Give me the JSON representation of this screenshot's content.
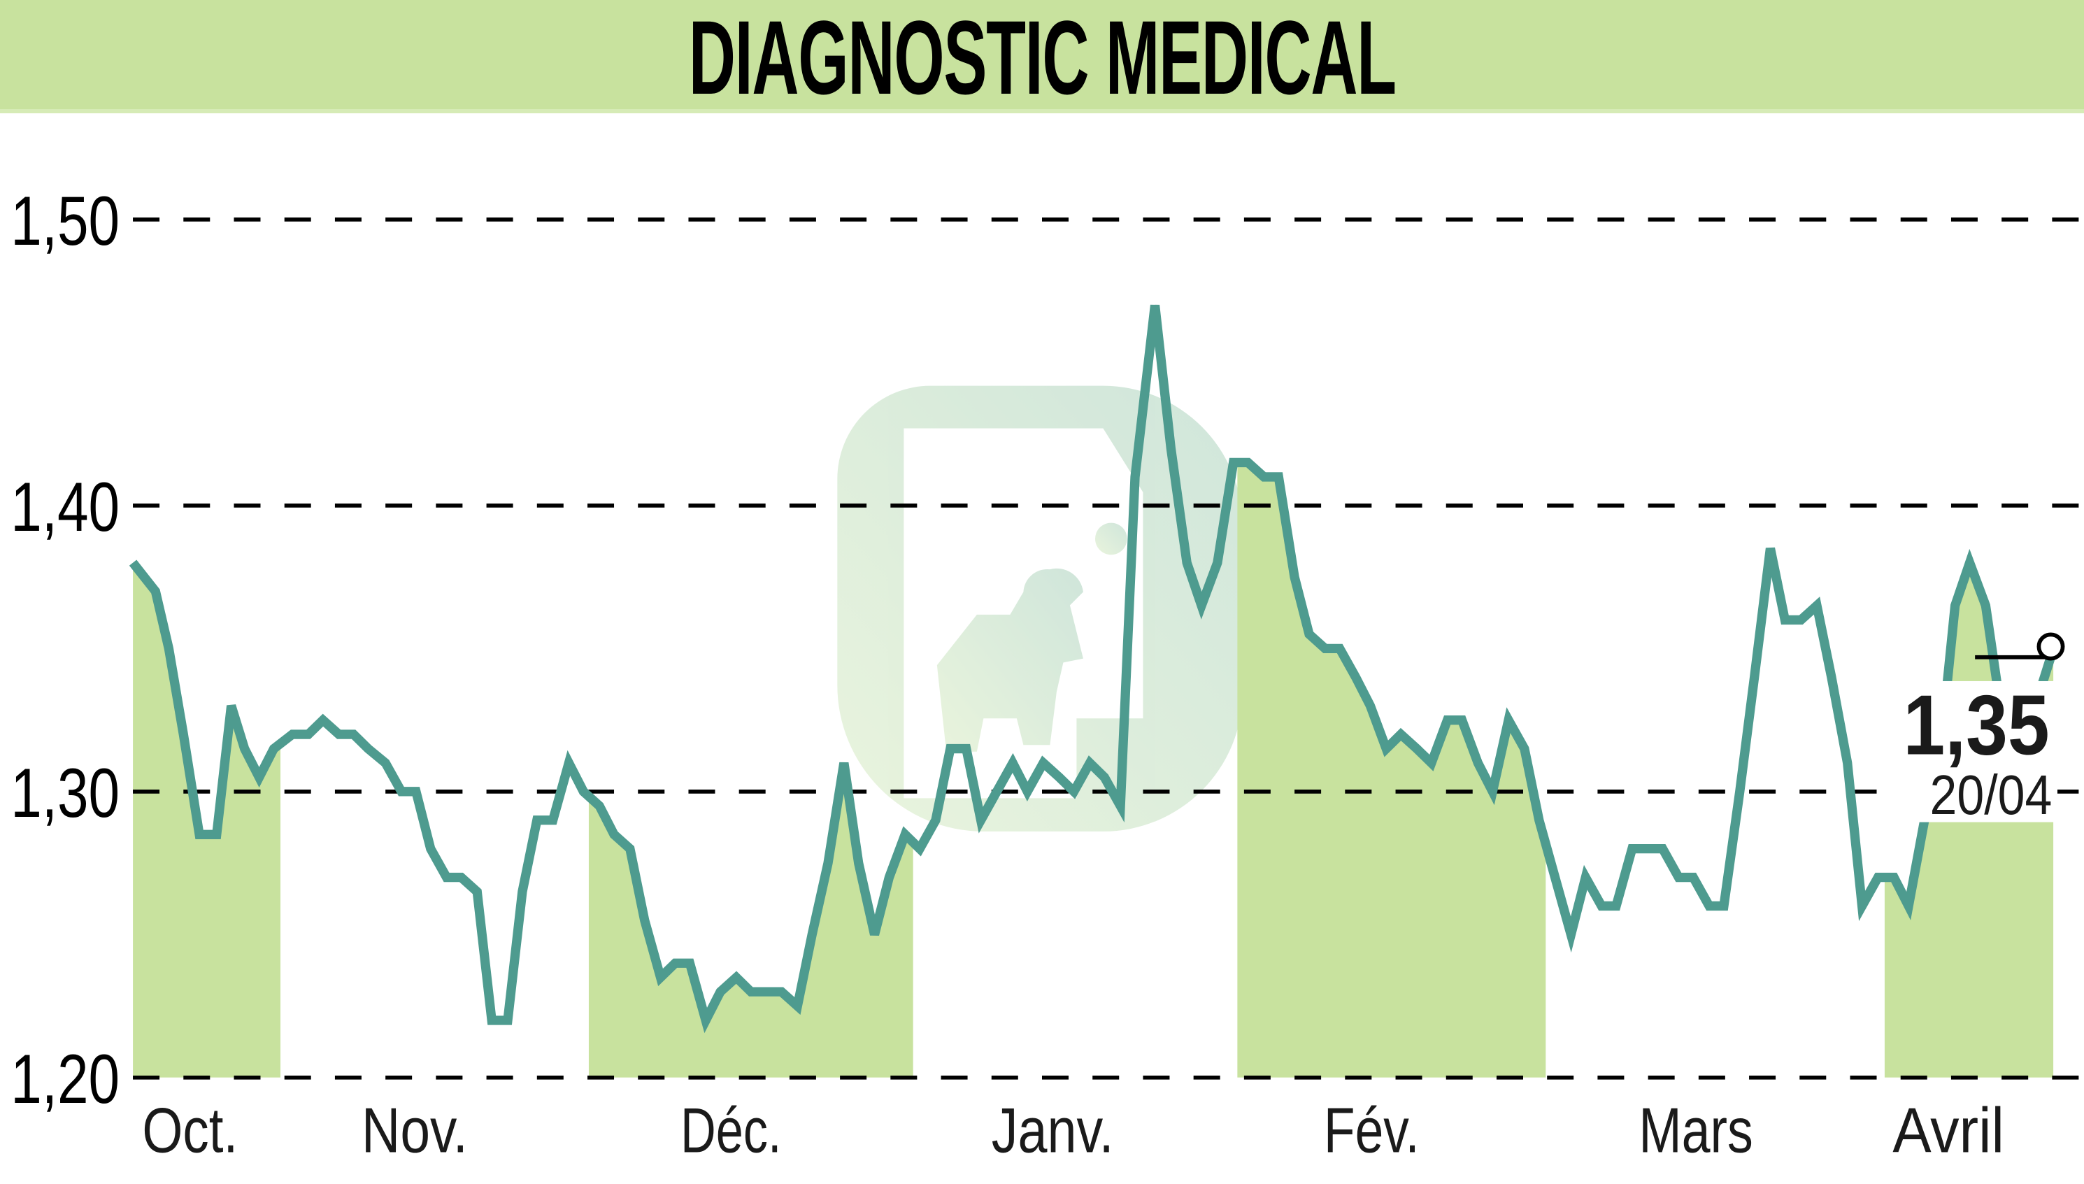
{
  "header": {
    "title": "DIAGNOSTIC MEDICAL"
  },
  "colors": {
    "header_bg": "#c8e29e",
    "band_fill": "#c8e29e",
    "line": "#4e9b8f",
    "grid": "#000000",
    "watermark": "#c9dfc8"
  },
  "last": {
    "value": "1,35",
    "date": "20/04"
  },
  "chart_data": {
    "type": "line",
    "title": "DIAGNOSTIC MEDICAL",
    "xlabel": "",
    "ylabel": "",
    "ylim": [
      1.2,
      1.5
    ],
    "yticks": [
      "1,50",
      "1,40",
      "1,30",
      "1,20"
    ],
    "ytick_values": [
      1.5,
      1.4,
      1.3,
      1.2
    ],
    "grid": "horizontal dashed",
    "legend": "none",
    "months": [
      "Oct.",
      "Nov.",
      "Déc.",
      "Janv.",
      "Fév.",
      "Mars",
      "Avril"
    ],
    "last_value": 1.35,
    "last_date": "20/04",
    "series": [
      {
        "name": "DIAGNOSTIC MEDICAL",
        "x": [
          100,
          117,
          127,
          138,
          150,
          163,
          174,
          184,
          195,
          206,
          220,
          232,
          243,
          255,
          266,
          277,
          290,
          302,
          313,
          324,
          336,
          347,
          359,
          370,
          382,
          393,
          404,
          416,
          428,
          439,
          451,
          462,
          474,
          485,
          497,
          508,
          519,
          531,
          542,
          554,
          565,
          577,
          588,
          600,
          611,
          623,
          635,
          646,
          658,
          669,
          681,
          692,
          704,
          715,
          727,
          738,
          750,
          762,
          773,
          785,
          797,
          808,
          820,
          831,
          843,
          854,
          869,
          881,
          893,
          904,
          916,
          928,
          939,
          951,
          962,
          974,
          985,
          997,
          1008,
          1020,
          1031,
          1043,
          1054,
          1066,
          1077,
          1089,
          1100,
          1112,
          1123,
          1135,
          1147,
          1158,
          1170,
          1182,
          1193,
          1205,
          1216,
          1228,
          1240,
          1251,
          1263,
          1274,
          1286,
          1297,
          1309,
          1320,
          1332,
          1343,
          1355,
          1367,
          1378,
          1390,
          1401,
          1413,
          1425,
          1436,
          1448,
          1459,
          1471,
          1482,
          1494,
          1505,
          1517,
          1528,
          1545
        ],
        "values": [
          1.38,
          1.37,
          1.35,
          1.32,
          1.285,
          1.285,
          1.33,
          1.315,
          1.305,
          1.315,
          1.32,
          1.32,
          1.325,
          1.32,
          1.32,
          1.315,
          1.31,
          1.3,
          1.3,
          1.28,
          1.27,
          1.27,
          1.265,
          1.22,
          1.22,
          1.265,
          1.29,
          1.29,
          1.31,
          1.3,
          1.295,
          1.285,
          1.28,
          1.255,
          1.235,
          1.24,
          1.24,
          1.22,
          1.23,
          1.235,
          1.23,
          1.23,
          1.23,
          1.225,
          1.25,
          1.275,
          1.31,
          1.275,
          1.25,
          1.27,
          1.285,
          1.28,
          1.29,
          1.315,
          1.315,
          1.29,
          1.3,
          1.31,
          1.3,
          1.31,
          1.305,
          1.3,
          1.31,
          1.305,
          1.295,
          1.41,
          1.47,
          1.42,
          1.38,
          1.365,
          1.38,
          1.415,
          1.415,
          1.41,
          1.41,
          1.375,
          1.355,
          1.35,
          1.35,
          1.34,
          1.33,
          1.315,
          1.32,
          1.315,
          1.31,
          1.325,
          1.325,
          1.31,
          1.3,
          1.325,
          1.315,
          1.29,
          1.27,
          1.25,
          1.27,
          1.26,
          1.26,
          1.28,
          1.28,
          1.28,
          1.27,
          1.27,
          1.26,
          1.26,
          1.3,
          1.34,
          1.385,
          1.36,
          1.36,
          1.365,
          1.34,
          1.31,
          1.26,
          1.27,
          1.27,
          1.26,
          1.29,
          1.31,
          1.365,
          1.38,
          1.365,
          1.33,
          1.32,
          1.325,
          1.35
        ]
      }
    ],
    "shaded_month_bands": [
      "Oct.",
      "Déc.",
      "Fév.",
      "Avril"
    ]
  }
}
